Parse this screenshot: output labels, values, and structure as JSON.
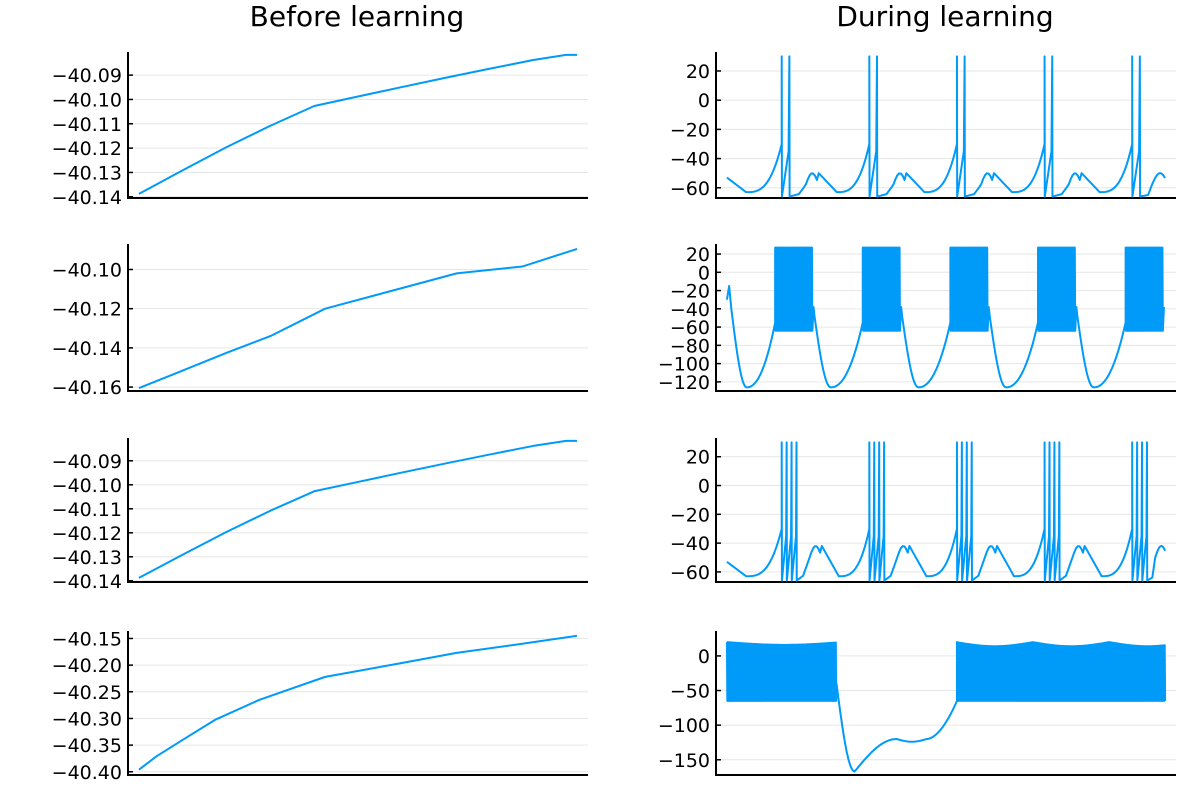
{
  "colors": {
    "series": "#009af9",
    "grid": "#e6e6e6",
    "axis": "#000000"
  },
  "column_titles": {
    "left": "Before learning",
    "right": "During learning"
  },
  "chart_data": [
    {
      "type": "line",
      "panel": "before-1",
      "legend": "none",
      "grid": true,
      "yticks": [
        -40.09,
        -40.1,
        -40.11,
        -40.12,
        -40.13,
        -40.14
      ],
      "ytick_labels": [
        "−40.09",
        "−40.10",
        "−40.11",
        "−40.12",
        "−40.13",
        "−40.14"
      ],
      "ylim": [
        -40.1405,
        -40.0805
      ],
      "xlim": [
        -0.05,
        2.05
      ],
      "x": [
        0,
        0.2,
        0.4,
        0.6,
        0.8,
        1.0,
        1.2,
        1.4,
        1.6,
        1.8,
        1.95,
        2.0
      ],
      "y": [
        -40.1388,
        -40.1291,
        -40.1196,
        -40.1108,
        -40.1027,
        -40.0988,
        -40.0949,
        -40.0911,
        -40.0874,
        -40.0838,
        -40.0817,
        -40.0817
      ]
    },
    {
      "type": "line",
      "panel": "before-2",
      "legend": "none",
      "grid": true,
      "yticks": [
        -40.1,
        -40.12,
        -40.14,
        -40.16
      ],
      "ytick_labels": [
        "−40.10",
        "−40.12",
        "−40.14",
        "−40.16"
      ],
      "ylim": [
        -40.162,
        -40.087
      ],
      "xlim": [
        -0.05,
        2.05
      ],
      "x": [
        0,
        0.15,
        0.4,
        0.6,
        0.85,
        1.2,
        1.45,
        1.75,
        2.0
      ],
      "y": [
        -40.1605,
        -40.1538,
        -40.1425,
        -40.134,
        -40.12,
        -40.1095,
        -40.102,
        -40.0985,
        -40.0895
      ]
    },
    {
      "type": "line",
      "panel": "before-3",
      "legend": "none",
      "grid": true,
      "yticks": [
        -40.09,
        -40.1,
        -40.11,
        -40.12,
        -40.13,
        -40.14
      ],
      "ytick_labels": [
        "−40.09",
        "−40.10",
        "−40.11",
        "−40.12",
        "−40.13",
        "−40.14"
      ],
      "ylim": [
        -40.1405,
        -40.0805
      ],
      "xlim": [
        -0.05,
        2.05
      ],
      "x": [
        0,
        0.2,
        0.4,
        0.6,
        0.8,
        1.0,
        1.2,
        1.4,
        1.6,
        1.8,
        1.95,
        2.0
      ],
      "y": [
        -40.1388,
        -40.1291,
        -40.1196,
        -40.1108,
        -40.1027,
        -40.0988,
        -40.0949,
        -40.0911,
        -40.0874,
        -40.0838,
        -40.0817,
        -40.0817
      ]
    },
    {
      "type": "line",
      "panel": "before-4",
      "legend": "none",
      "grid": true,
      "yticks": [
        -40.15,
        -40.2,
        -40.25,
        -40.3,
        -40.35,
        -40.4
      ],
      "ytick_labels": [
        "−40.15",
        "−40.20",
        "−40.25",
        "−40.30",
        "−40.35",
        "−40.40"
      ],
      "ylim": [
        -40.406,
        -40.136
      ],
      "xlim": [
        -0.05,
        2.05
      ],
      "x": [
        0,
        0.08,
        0.2,
        0.35,
        0.55,
        0.85,
        1.2,
        1.45,
        1.75,
        2.0
      ],
      "y": [
        -40.396,
        -40.371,
        -40.34,
        -40.302,
        -40.265,
        -40.222,
        -40.196,
        -40.177,
        -40.16,
        -40.145
      ]
    },
    {
      "type": "line",
      "panel": "during-1",
      "legend": "none",
      "grid": true,
      "trace": "single_spikes",
      "yticks": [
        20,
        0,
        -20,
        -40,
        -60
      ],
      "ytick_labels": [
        "20",
        "0",
        "−20",
        "−40",
        "−60"
      ],
      "ylim": [
        -67,
        33
      ],
      "xlim": [
        -0.05,
        2.05
      ],
      "baseline": -63,
      "peak": 30,
      "spike_trough": -66,
      "after_hump": -50,
      "bursts": [
        0.25,
        0.65,
        1.05,
        1.45,
        1.85
      ],
      "spikes_per_burst": 2,
      "burst_width": 0.07
    },
    {
      "type": "line",
      "panel": "during-2",
      "legend": "none",
      "grid": true,
      "trace": "dense_bursts",
      "yticks": [
        20,
        0,
        -20,
        -40,
        -60,
        -80,
        -100,
        -120
      ],
      "ytick_labels": [
        "20",
        "0",
        "−20",
        "−40",
        "−60",
        "−80",
        "−100",
        "−120"
      ],
      "ylim": [
        -130,
        31
      ],
      "xlim": [
        -0.05,
        2.05
      ],
      "bursts": [
        [
          0.22,
          0.39
        ],
        [
          0.62,
          0.79
        ],
        [
          1.02,
          1.19
        ],
        [
          1.42,
          1.59
        ],
        [
          1.82,
          1.99
        ]
      ],
      "burst_high": 27,
      "burst_low": -64,
      "trough": -126
    },
    {
      "type": "line",
      "panel": "during-3",
      "legend": "none",
      "grid": true,
      "trace": "multi_spikes",
      "yticks": [
        20,
        0,
        -20,
        -40,
        -60
      ],
      "ytick_labels": [
        "20",
        "0",
        "−20",
        "−40",
        "−60"
      ],
      "ylim": [
        -67,
        33
      ],
      "xlim": [
        -0.05,
        2.05
      ],
      "baseline": -63,
      "peak": 30,
      "spike_trough": -66,
      "after_hump": -42,
      "bursts": [
        0.25,
        0.65,
        1.05,
        1.45,
        1.85
      ],
      "spikes_per_burst": 4,
      "burst_width": 0.09
    },
    {
      "type": "line",
      "panel": "during-4",
      "legend": "none",
      "grid": true,
      "trace": "long_burst",
      "yticks": [
        0,
        -50,
        -100,
        -150
      ],
      "ytick_labels": [
        "0",
        "−50",
        "−100",
        "−150"
      ],
      "ylim": [
        -172,
        36
      ],
      "xlim": [
        -0.05,
        2.05
      ],
      "burst_segments": [
        [
          0.0,
          0.5
        ],
        [
          1.05,
          2.0
        ]
      ],
      "burst_high": 20,
      "burst_low": -65,
      "trough": -167,
      "plateau": -120
    }
  ]
}
